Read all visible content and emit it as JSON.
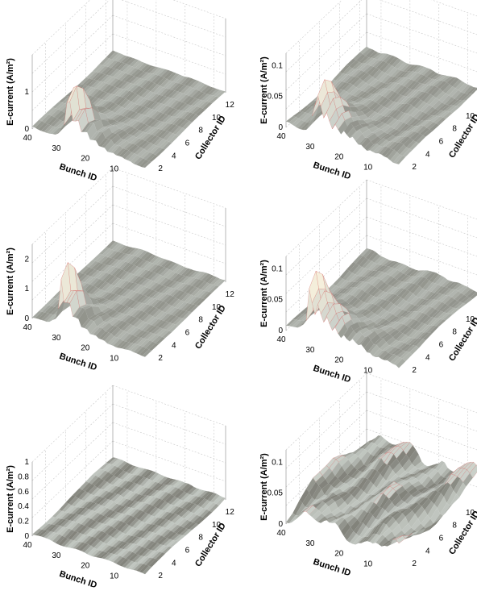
{
  "chart_data": [
    {
      "type": "surface3d",
      "panel": "top-left",
      "xlabel": "Bunch ID",
      "ylabel": "Collector ID",
      "zlabel": "E-current (A/m²)",
      "zlabel_unit_superscript": "2",
      "x_ticks": [
        "40",
        "30",
        "20",
        "10"
      ],
      "y_ticks": [
        "2",
        "4",
        "6",
        "8",
        "10",
        "12"
      ],
      "z_ticks": [
        "0",
        "1"
      ],
      "xlim": [
        1,
        40
      ],
      "ylim": [
        1,
        13
      ],
      "zlim": [
        0,
        2
      ],
      "surface_profile": {
        "collector_ridge": 2,
        "ridge_height": 1.6,
        "bunch_start": 28,
        "decay_toward_bunch": 6,
        "noise": 0.04
      }
    },
    {
      "type": "surface3d",
      "panel": "top-right",
      "xlabel": "Bunch ID",
      "ylabel": "Collector ID",
      "zlabel": "E-current (A/m²)",
      "zlabel_unit_superscript": "2",
      "x_ticks": [
        "40",
        "30",
        "20",
        "10"
      ],
      "y_ticks": [
        "2",
        "4",
        "6",
        "8",
        "10",
        "12"
      ],
      "z_ticks": [
        "0",
        "0.05",
        "0.1"
      ],
      "xlim": [
        1,
        40
      ],
      "ylim": [
        1,
        13
      ],
      "zlim": [
        0,
        0.12
      ],
      "surface_profile": {
        "collector_ridge": 2,
        "ridge_height": 0.09,
        "bunch_start": 30,
        "decay_toward_bunch": 8,
        "noise": 0.006
      }
    },
    {
      "type": "surface3d",
      "panel": "middle-left",
      "xlabel": "Bunch ID",
      "ylabel": "Collector ID",
      "zlabel": "E-current (A/m²)",
      "zlabel_unit_superscript": "2",
      "x_ticks": [
        "40",
        "30",
        "20",
        "10"
      ],
      "y_ticks": [
        "2",
        "4",
        "6",
        "8",
        "10",
        "12"
      ],
      "z_ticks": [
        "0",
        "1",
        "2"
      ],
      "xlim": [
        1,
        40
      ],
      "ylim": [
        1,
        13
      ],
      "zlim": [
        0,
        2.5
      ],
      "surface_profile": {
        "collector_ridge": 2,
        "ridge_height": 2.0,
        "bunch_start": 30,
        "decay_toward_bunch": 5,
        "noise": 0.05
      }
    },
    {
      "type": "surface3d",
      "panel": "middle-right",
      "xlabel": "Bunch ID",
      "ylabel": "Collector ID",
      "zlabel": "E-current (A/m²)",
      "zlabel_unit_superscript": "2",
      "x_ticks": [
        "40",
        "30",
        "20",
        "10"
      ],
      "y_ticks": [
        "2",
        "4",
        "6",
        "8",
        "10",
        "12"
      ],
      "z_ticks": [
        "0",
        "0.05",
        "0.1"
      ],
      "xlim": [
        1,
        40
      ],
      "ylim": [
        1,
        13
      ],
      "zlim": [
        0,
        0.12
      ],
      "surface_profile": {
        "collector_ridge": 2,
        "ridge_height": 0.1,
        "bunch_start": 32,
        "decay_toward_bunch": 9,
        "noise": 0.006
      }
    },
    {
      "type": "surface3d",
      "panel": "bottom-left",
      "xlabel": "Bunch ID",
      "ylabel": "Collector ID",
      "zlabel": "E-current (A/m²)",
      "zlabel_unit_superscript": "2",
      "x_ticks": [
        "40",
        "30",
        "20",
        "10"
      ],
      "y_ticks": [
        "2",
        "4",
        "6",
        "8",
        "10",
        "12"
      ],
      "z_ticks": [
        "0",
        "0.2",
        "0.4",
        "0.6",
        "0.8",
        "1"
      ],
      "xlim": [
        1,
        40
      ],
      "ylim": [
        1,
        13
      ],
      "zlim": [
        0,
        1
      ],
      "surface_profile": {
        "collector_ridge": 2,
        "ridge_height": 0.0,
        "bunch_start": 40,
        "decay_toward_bunch": 5,
        "noise": 0.03
      }
    },
    {
      "type": "surface3d",
      "panel": "bottom-right",
      "xlabel": "Bunch ID",
      "ylabel": "Collector ID",
      "zlabel": "E-current (A/m²)",
      "zlabel_unit_superscript": "2",
      "x_ticks": [
        "40",
        "30",
        "20",
        "10"
      ],
      "y_ticks": [
        "2",
        "4",
        "6",
        "8",
        "10",
        "12"
      ],
      "z_ticks": [
        "0",
        "0.05",
        "0.1"
      ],
      "xlim": [
        1,
        40
      ],
      "ylim": [
        1,
        13
      ],
      "zlim": [
        0,
        0.12
      ],
      "surface_profile": {
        "collector_ridge": 2,
        "ridge_height": 0.0,
        "bunch_start": 40,
        "decay_toward_bunch": 5,
        "noise": 0.02
      }
    }
  ],
  "colors": {
    "surface_low": "#7a7a72",
    "surface_mid": "#c9cfc9",
    "surface_high": "#fff6e0",
    "ridge_lines": "#d04040",
    "grid": "#c8c8c8",
    "axis": "#000000"
  }
}
